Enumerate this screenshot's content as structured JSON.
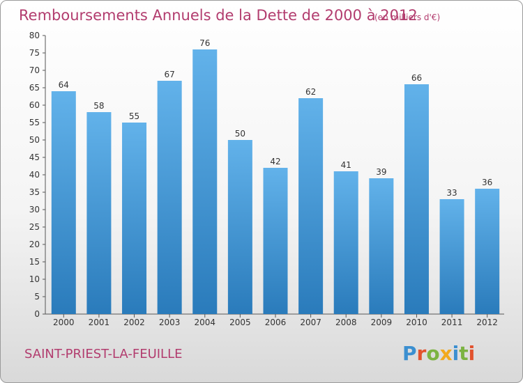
{
  "title": "Remboursements Annuels de la Dette de 2000 à 2012",
  "unit": "(en milliers d'€)",
  "commune": "SAINT-PRIEST-LA-FEUILLE",
  "brand": "Proxiti",
  "colors": {
    "bar_top": "#62b2ea",
    "bar_bottom": "#2a7bbb",
    "title": "#b23c6e"
  },
  "chart_data": {
    "type": "bar",
    "categories": [
      "2000",
      "2001",
      "2002",
      "2003",
      "2004",
      "2005",
      "2006",
      "2007",
      "2008",
      "2009",
      "2010",
      "2011",
      "2012"
    ],
    "values": [
      64,
      58,
      55,
      67,
      76,
      50,
      42,
      62,
      41,
      39,
      66,
      33,
      36
    ],
    "ylim": [
      0,
      80
    ],
    "yticks": [
      0,
      5,
      10,
      15,
      20,
      25,
      30,
      35,
      40,
      45,
      50,
      55,
      60,
      65,
      70,
      75,
      80
    ],
    "grid": false
  }
}
